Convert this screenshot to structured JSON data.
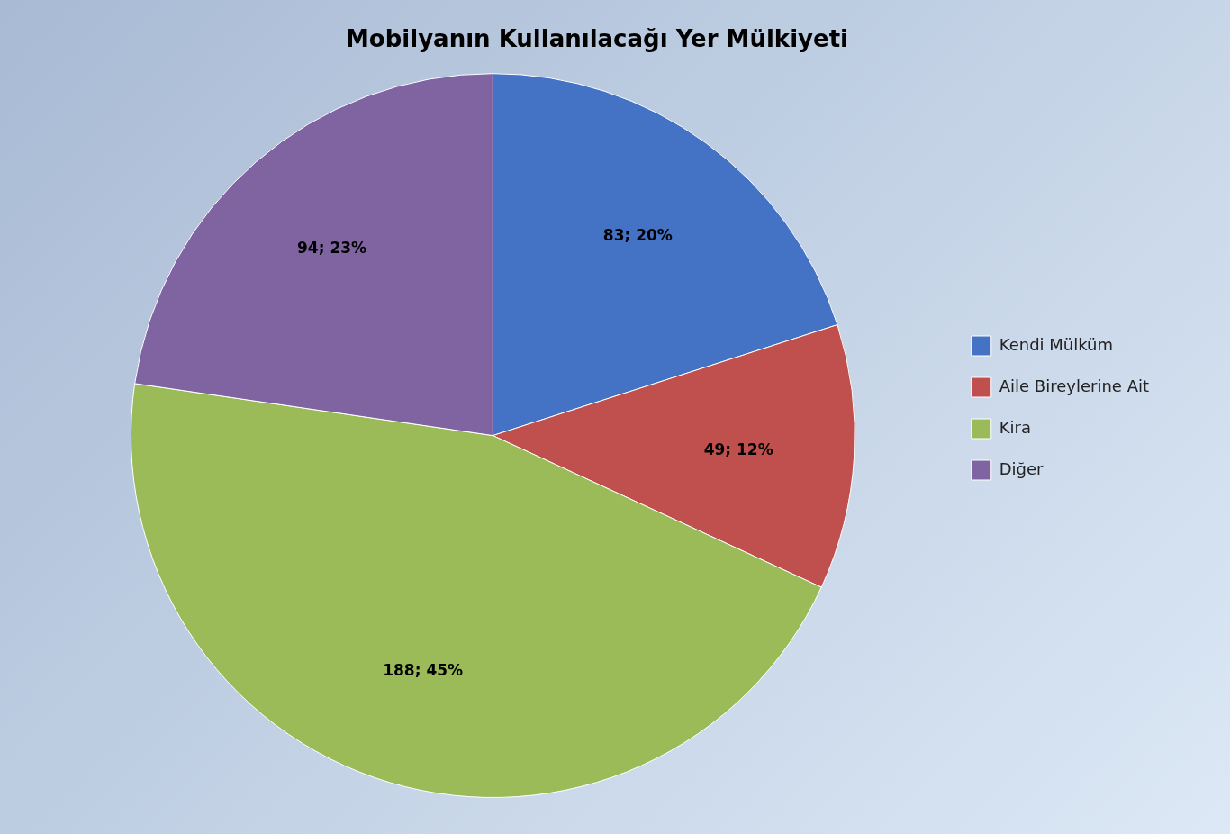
{
  "chart_data": {
    "type": "pie",
    "title": "Mobilyanın Kullanılacağı Yer Mülkiyeti",
    "categories": [
      "Kendi Mülküm",
      "Aile Bireylerine Ait",
      "Kira",
      "Diğer"
    ],
    "values": [
      83,
      49,
      188,
      94
    ],
    "value_labels": [
      "83; 20%",
      "49; 12%",
      "188; 45%",
      "94; 23%"
    ],
    "colors": [
      "#4472C4",
      "#C0504D",
      "#9BBB59",
      "#8064A2"
    ],
    "data_labels": true,
    "legend": "right"
  }
}
